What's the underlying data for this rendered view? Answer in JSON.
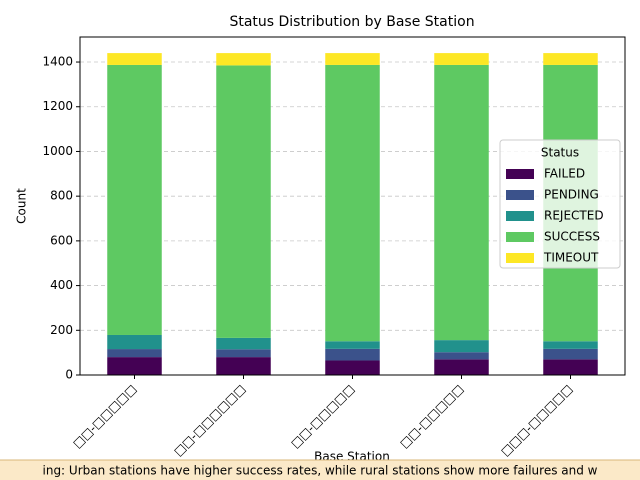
{
  "chart_data": {
    "type": "stacked_bar",
    "title": "Status Distribution by Base Station",
    "x_label": "Base Station",
    "y_label": "Count",
    "categories": [
      "□□-□□□□□",
      "□□-□□□□□□",
      "□□-□□□□□",
      "□□-□□□□□",
      "□□□-□□□□□"
    ],
    "series": [
      {
        "name": "FAILED",
        "color": "#440154",
        "values": [
          80,
          80,
          65,
          70,
          70
        ]
      },
      {
        "name": "PENDING",
        "color": "#3b528b",
        "values": [
          36,
          35,
          52,
          32,
          47
        ]
      },
      {
        "name": "REJECTED",
        "color": "#21918c",
        "values": [
          63,
          51,
          34,
          54,
          34
        ]
      },
      {
        "name": "SUCCESS",
        "color": "#5ec962",
        "values": [
          1208,
          1219,
          1236,
          1231,
          1236
        ]
      },
      {
        "name": "TIMEOUT",
        "color": "#fde725",
        "values": [
          53,
          55,
          53,
          53,
          53
        ]
      }
    ],
    "ylim": [
      0,
      1512
    ],
    "yticks": [
      0,
      200,
      400,
      600,
      800,
      1000,
      1200,
      1400
    ],
    "grid": true,
    "legend_title": "Status",
    "legend": "center right",
    "annotation": "ing: Urban stations have higher success rates, while rural stations show more failures and w"
  }
}
